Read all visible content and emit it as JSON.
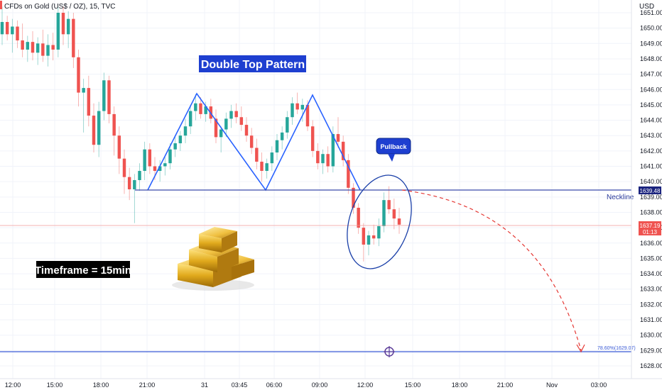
{
  "header": {
    "symbol_title": "CFDs on Gold (US$ / OZ), 15, TVC",
    "currency": "USD"
  },
  "colors": {
    "up": "#26a69a",
    "down": "#ef5350",
    "pattern_line": "#2962ff",
    "annotation_bg": "#1e3fd0",
    "projection": "#e53935",
    "target_line": "#3b5bd6",
    "grid": "#f0f3fa"
  },
  "chart_data": {
    "type": "candlestick",
    "ylim": [
      1627.8,
      1651.4
    ],
    "y_ticks": [
      1628.0,
      1629.0,
      1630.0,
      1631.0,
      1632.0,
      1633.0,
      1634.0,
      1635.0,
      1636.0,
      1637.0,
      1638.0,
      1639.0,
      1640.0,
      1641.0,
      1642.0,
      1643.0,
      1644.0,
      1645.0,
      1646.0,
      1647.0,
      1648.0,
      1649.0,
      1650.0,
      1651.0
    ],
    "x_ticks": [
      "12:00",
      "15:00",
      "18:00",
      "21:00",
      "31",
      "03:45",
      "06:00",
      "09:00",
      "12:00",
      "15:00",
      "18:00",
      "21:00",
      "Nov",
      "03:00"
    ],
    "candles": [
      [
        1649.6,
        1651.4,
        1648.9,
        1650.4
      ],
      [
        1650.4,
        1650.8,
        1649.2,
        1649.6
      ],
      [
        1649.6,
        1650.6,
        1648.4,
        1650.1
      ],
      [
        1650.1,
        1650.5,
        1648.7,
        1649.2
      ],
      [
        1649.2,
        1650.3,
        1648.1,
        1648.6
      ],
      [
        1648.6,
        1649.5,
        1647.8,
        1649.1
      ],
      [
        1649.1,
        1649.8,
        1647.9,
        1648.4
      ],
      [
        1648.4,
        1649.4,
        1647.6,
        1649.0
      ],
      [
        1649.0,
        1649.9,
        1647.8,
        1648.2
      ],
      [
        1648.2,
        1649.6,
        1647.5,
        1648.9
      ],
      [
        1648.9,
        1649.7,
        1647.9,
        1648.6
      ],
      [
        1648.6,
        1651.4,
        1648.1,
        1651.0
      ],
      [
        1651.0,
        1651.4,
        1648.9,
        1649.6
      ],
      [
        1649.6,
        1651.1,
        1648.7,
        1650.6
      ],
      [
        1650.6,
        1651.0,
        1647.4,
        1648.1
      ],
      [
        1648.1,
        1648.6,
        1644.9,
        1645.8
      ],
      [
        1645.8,
        1646.7,
        1643.2,
        1646.1
      ],
      [
        1646.1,
        1646.9,
        1643.6,
        1644.3
      ],
      [
        1644.3,
        1645.1,
        1641.9,
        1642.4
      ],
      [
        1642.4,
        1645.2,
        1641.6,
        1644.6
      ],
      [
        1644.6,
        1647.1,
        1644.0,
        1646.6
      ],
      [
        1646.6,
        1646.9,
        1643.8,
        1644.4
      ],
      [
        1644.4,
        1644.9,
        1641.7,
        1643.0
      ],
      [
        1643.0,
        1643.6,
        1640.5,
        1641.5
      ],
      [
        1641.5,
        1642.1,
        1639.2,
        1640.3
      ],
      [
        1640.3,
        1640.9,
        1638.8,
        1639.5
      ],
      [
        1639.5,
        1640.5,
        1637.3,
        1640.1
      ],
      [
        1640.1,
        1641.2,
        1639.4,
        1640.7
      ],
      [
        1640.7,
        1642.6,
        1640.1,
        1642.1
      ],
      [
        1642.1,
        1642.5,
        1640.5,
        1641.0
      ],
      [
        1641.0,
        1641.6,
        1640.1,
        1640.7
      ],
      [
        1640.7,
        1641.4,
        1640.0,
        1641.0
      ],
      [
        1641.0,
        1641.6,
        1640.4,
        1641.2
      ],
      [
        1641.2,
        1642.5,
        1640.8,
        1642.1
      ],
      [
        1642.1,
        1643.0,
        1641.6,
        1642.5
      ],
      [
        1642.5,
        1643.3,
        1642.0,
        1643.0
      ],
      [
        1643.0,
        1644.1,
        1642.5,
        1643.6
      ],
      [
        1643.6,
        1645.0,
        1643.1,
        1644.6
      ],
      [
        1644.6,
        1645.7,
        1644.0,
        1645.1
      ],
      [
        1645.1,
        1645.5,
        1644.1,
        1644.4
      ],
      [
        1644.4,
        1645.2,
        1643.9,
        1644.9
      ],
      [
        1644.9,
        1645.4,
        1643.8,
        1644.1
      ],
      [
        1644.1,
        1644.7,
        1642.5,
        1642.9
      ],
      [
        1642.9,
        1643.6,
        1641.9,
        1643.4
      ],
      [
        1643.4,
        1644.5,
        1642.9,
        1644.1
      ],
      [
        1644.1,
        1645.0,
        1643.5,
        1644.6
      ],
      [
        1644.6,
        1645.1,
        1643.8,
        1644.2
      ],
      [
        1644.2,
        1644.9,
        1643.3,
        1643.7
      ],
      [
        1643.7,
        1644.2,
        1642.6,
        1643.0
      ],
      [
        1643.0,
        1643.5,
        1641.8,
        1642.2
      ],
      [
        1642.2,
        1642.8,
        1640.8,
        1641.3
      ],
      [
        1641.3,
        1641.9,
        1640.0,
        1640.7
      ],
      [
        1640.7,
        1641.5,
        1640.2,
        1641.2
      ],
      [
        1641.2,
        1642.3,
        1640.7,
        1641.9
      ],
      [
        1641.9,
        1643.1,
        1641.4,
        1642.7
      ],
      [
        1642.7,
        1643.6,
        1642.1,
        1643.2
      ],
      [
        1643.2,
        1644.6,
        1642.8,
        1644.2
      ],
      [
        1644.2,
        1645.5,
        1643.7,
        1645.1
      ],
      [
        1645.1,
        1645.8,
        1644.4,
        1644.7
      ],
      [
        1644.7,
        1645.4,
        1643.9,
        1645.0
      ],
      [
        1645.0,
        1645.3,
        1643.3,
        1643.6
      ],
      [
        1643.6,
        1644.0,
        1641.6,
        1642.0
      ],
      [
        1642.0,
        1642.5,
        1640.8,
        1641.2
      ],
      [
        1641.2,
        1642.1,
        1640.5,
        1641.8
      ],
      [
        1641.8,
        1642.3,
        1640.6,
        1641.0
      ],
      [
        1641.0,
        1643.6,
        1640.6,
        1643.1
      ],
      [
        1643.1,
        1644.2,
        1642.2,
        1642.6
      ],
      [
        1642.6,
        1643.0,
        1641.0,
        1641.4
      ],
      [
        1641.4,
        1641.8,
        1639.2,
        1639.6
      ],
      [
        1639.6,
        1639.9,
        1637.9,
        1638.3
      ],
      [
        1638.3,
        1638.6,
        1636.6,
        1637.0
      ],
      [
        1637.0,
        1637.3,
        1634.8,
        1635.9
      ],
      [
        1635.9,
        1636.8,
        1635.2,
        1636.5
      ],
      [
        1636.5,
        1637.2,
        1635.9,
        1636.3
      ],
      [
        1636.3,
        1637.6,
        1635.8,
        1637.1
      ],
      [
        1637.1,
        1639.3,
        1636.7,
        1638.8
      ],
      [
        1638.8,
        1639.7,
        1637.9,
        1638.2
      ],
      [
        1638.2,
        1638.9,
        1636.9,
        1637.6
      ],
      [
        1637.6,
        1638.3,
        1636.6,
        1637.2
      ]
    ],
    "annotations": {
      "pattern_title": "Double Top Pattern",
      "pullback": "Pullback",
      "neckline": "Neckline",
      "timeframe": "Timeframe = 15min",
      "target": "78.60%(1629.07)"
    },
    "price_labels": [
      {
        "text": "1639.48",
        "value": 1639.48
      },
      {
        "text": "1637.19",
        "value": 1637.19,
        "sub": "01:13"
      }
    ],
    "neckline_value": 1639.48,
    "target_value": 1629.07,
    "current_value": 1637.19
  }
}
